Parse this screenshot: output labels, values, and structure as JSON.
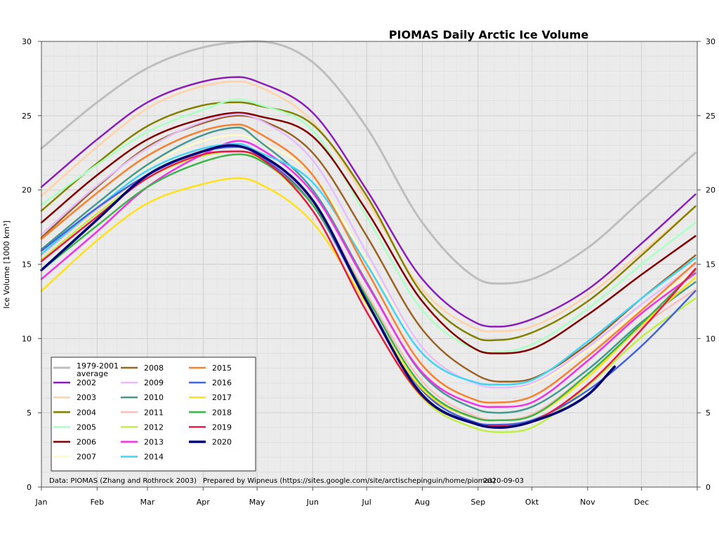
{
  "chart_data": {
    "type": "line",
    "title": "PIOMAS Daily Arctic Ice Volume",
    "ylabel": "Ice Volume [1000 km³]",
    "xlabel": "",
    "ylim": [
      0,
      30
    ],
    "yticks": [
      0,
      5,
      10,
      15,
      20,
      25,
      30
    ],
    "months": [
      "Jan",
      "Feb",
      "Mar",
      "Apr",
      "May",
      "Jun",
      "Jul",
      "Aug",
      "Sep",
      "Okt",
      "Nov",
      "Dec"
    ],
    "grid": true,
    "legend_placement": "bottom-left",
    "background_color": "#ebebeb",
    "note_data": "Data: PIOMAS (Zhang and Rothrock 2003)",
    "note_prepared": "Prepared by Wipneus (https://sites.google.com/site/arctischepinguin/home/piomas)",
    "note_date": "2020-09-03",
    "series": [
      {
        "name": "1979-2001 average",
        "color": "#bebebe",
        "width": 3,
        "x": [
          1,
          32,
          60,
          91,
          121,
          152,
          182,
          213,
          244,
          257,
          274,
          305,
          335,
          365
        ],
        "values": [
          22.8,
          25.9,
          28.2,
          29.6,
          30.0,
          28.6,
          24.2,
          17.8,
          14.0,
          13.7,
          14.0,
          16.1,
          19.3,
          22.5
        ]
      },
      {
        "name": "2002",
        "color": "#8b1eb8",
        "width": 2.5,
        "x": [
          1,
          32,
          60,
          91,
          111,
          121,
          152,
          182,
          213,
          244,
          256,
          274,
          305,
          335,
          365
        ],
        "values": [
          20.2,
          23.4,
          25.9,
          27.3,
          27.6,
          27.3,
          25.2,
          20.0,
          14.0,
          11.0,
          10.8,
          11.3,
          13.3,
          16.4,
          19.7
        ]
      },
      {
        "name": "2003",
        "color": "#ffd3a8",
        "width": 2.5,
        "x": [
          1,
          32,
          60,
          91,
          111,
          121,
          152,
          182,
          213,
          244,
          256,
          274,
          305,
          335,
          365
        ],
        "values": [
          19.6,
          22.9,
          25.5,
          27.0,
          27.3,
          27.0,
          24.6,
          19.3,
          13.3,
          10.6,
          10.5,
          10.8,
          12.9,
          15.8,
          18.9
        ]
      },
      {
        "name": "2004",
        "color": "#838200",
        "width": 2.5,
        "x": [
          1,
          32,
          60,
          91,
          111,
          121,
          152,
          182,
          213,
          244,
          256,
          274,
          305,
          335,
          365
        ],
        "values": [
          18.6,
          21.8,
          24.3,
          25.7,
          25.9,
          25.7,
          24.4,
          19.6,
          13.0,
          10.0,
          9.9,
          10.4,
          12.5,
          15.6,
          18.9
        ]
      },
      {
        "name": "2005",
        "color": "#aaffc3",
        "width": 2.5,
        "x": [
          1,
          32,
          60,
          91,
          111,
          121,
          152,
          182,
          213,
          244,
          256,
          274,
          305,
          335,
          365
        ],
        "values": [
          19.0,
          21.7,
          23.9,
          25.4,
          26.1,
          25.8,
          24.0,
          18.2,
          11.9,
          9.2,
          9.1,
          9.6,
          12.0,
          15.0,
          17.8
        ]
      },
      {
        "name": "2006",
        "color": "#800000",
        "width": 2.5,
        "x": [
          1,
          32,
          60,
          91,
          111,
          121,
          152,
          182,
          213,
          244,
          256,
          274,
          305,
          335,
          365
        ],
        "values": [
          17.8,
          21.0,
          23.4,
          24.8,
          25.2,
          25.0,
          23.6,
          18.6,
          12.5,
          9.2,
          9.0,
          9.3,
          11.6,
          14.3,
          16.9
        ]
      },
      {
        "name": "2007",
        "color": "#fffac8",
        "width": 2.5,
        "x": [
          1,
          32,
          60,
          91,
          111,
          121,
          152,
          182,
          213,
          244,
          256,
          274,
          305,
          335,
          365
        ],
        "values": [
          16.0,
          19.1,
          21.6,
          23.3,
          23.7,
          23.3,
          21.0,
          15.3,
          9.4,
          6.9,
          6.7,
          6.9,
          9.2,
          12.0,
          14.6
        ]
      },
      {
        "name": "2008",
        "color": "#9a6324",
        "width": 2.5,
        "x": [
          1,
          32,
          60,
          91,
          111,
          121,
          152,
          182,
          213,
          244,
          256,
          274,
          305,
          335,
          365
        ],
        "values": [
          16.8,
          20.2,
          22.9,
          24.5,
          25.0,
          24.8,
          22.5,
          16.9,
          10.6,
          7.5,
          7.1,
          7.3,
          9.6,
          12.7,
          15.6
        ]
      },
      {
        "name": "2009",
        "color": "#e6beff",
        "width": 2.5,
        "x": [
          1,
          32,
          60,
          91,
          111,
          121,
          152,
          182,
          213,
          244,
          256,
          274,
          305,
          335,
          365
        ],
        "values": [
          17.0,
          20.3,
          22.8,
          24.6,
          25.1,
          24.8,
          22.0,
          15.8,
          9.4,
          6.9,
          6.7,
          7.0,
          9.4,
          12.3,
          15.0
        ]
      },
      {
        "name": "2010",
        "color": "#469990",
        "width": 2.5,
        "x": [
          1,
          32,
          60,
          91,
          111,
          121,
          152,
          182,
          213,
          244,
          256,
          274,
          305,
          335,
          365
        ],
        "values": [
          16.0,
          19.1,
          21.7,
          23.7,
          24.2,
          23.4,
          20.0,
          13.8,
          7.6,
          5.2,
          5.0,
          5.4,
          7.9,
          11.1,
          13.8
        ]
      },
      {
        "name": "2011",
        "color": "#fabebe",
        "width": 2.5,
        "x": [
          1,
          32,
          60,
          91,
          111,
          121,
          152,
          182,
          213,
          244,
          256,
          274,
          305,
          335,
          365
        ],
        "values": [
          15.6,
          18.7,
          21.0,
          22.7,
          23.0,
          22.5,
          19.2,
          13.0,
          7.1,
          4.7,
          4.5,
          4.9,
          7.6,
          10.8,
          13.3
        ]
      },
      {
        "name": "2012",
        "color": "#bfef45",
        "width": 2.5,
        "x": [
          1,
          32,
          60,
          91,
          111,
          121,
          152,
          182,
          213,
          244,
          256,
          274,
          305,
          335,
          365
        ],
        "values": [
          15.3,
          18.4,
          20.8,
          22.3,
          22.6,
          22.2,
          18.6,
          11.8,
          6.0,
          3.9,
          3.7,
          4.0,
          6.8,
          10.1,
          12.7
        ]
      },
      {
        "name": "2013",
        "color": "#f032e6",
        "width": 2.5,
        "x": [
          1,
          32,
          60,
          91,
          111,
          121,
          152,
          182,
          213,
          244,
          256,
          274,
          305,
          335,
          365
        ],
        "values": [
          14.0,
          17.2,
          20.2,
          22.4,
          23.3,
          22.9,
          19.8,
          13.7,
          7.7,
          5.5,
          5.4,
          5.7,
          8.5,
          11.7,
          14.4
        ]
      },
      {
        "name": "2014",
        "color": "#42d4f4",
        "width": 2.5,
        "x": [
          1,
          32,
          60,
          91,
          111,
          121,
          152,
          182,
          213,
          244,
          256,
          274,
          305,
          335,
          365
        ],
        "values": [
          15.7,
          18.8,
          21.3,
          22.8,
          23.1,
          22.6,
          20.5,
          15.0,
          9.0,
          7.0,
          6.9,
          7.2,
          9.8,
          12.7,
          15.4
        ]
      },
      {
        "name": "2015",
        "color": "#f58231",
        "width": 2.5,
        "x": [
          1,
          32,
          60,
          91,
          111,
          121,
          152,
          182,
          213,
          244,
          256,
          274,
          305,
          335,
          365
        ],
        "values": [
          16.7,
          19.8,
          22.3,
          24.0,
          24.4,
          23.9,
          21.0,
          14.6,
          8.2,
          5.8,
          5.7,
          6.1,
          8.8,
          11.9,
          15.1
        ]
      },
      {
        "name": "2016",
        "color": "#4363d8",
        "width": 2.5,
        "x": [
          1,
          32,
          60,
          91,
          111,
          121,
          152,
          182,
          213,
          244,
          256,
          274,
          305,
          335,
          365
        ],
        "values": [
          15.9,
          18.8,
          21.0,
          22.6,
          22.9,
          22.4,
          19.0,
          12.5,
          6.5,
          4.3,
          4.2,
          4.5,
          6.5,
          9.5,
          13.2
        ]
      },
      {
        "name": "2017",
        "color": "#ffe119",
        "width": 2.5,
        "x": [
          1,
          32,
          60,
          91,
          111,
          121,
          152,
          182,
          213,
          244,
          256,
          274,
          305,
          335,
          365
        ],
        "values": [
          13.2,
          16.6,
          19.1,
          20.4,
          20.8,
          20.5,
          17.8,
          12.3,
          6.6,
          4.6,
          4.5,
          4.8,
          7.4,
          10.9,
          14.1
        ]
      },
      {
        "name": "2018",
        "color": "#3cb44b",
        "width": 2.5,
        "x": [
          1,
          32,
          60,
          91,
          111,
          121,
          152,
          182,
          213,
          244,
          256,
          274,
          305,
          335,
          365
        ],
        "values": [
          14.6,
          17.6,
          20.2,
          21.9,
          22.4,
          22.1,
          19.0,
          12.8,
          6.8,
          4.6,
          4.5,
          4.8,
          7.6,
          11.0,
          14.6
        ]
      },
      {
        "name": "2019",
        "color": "#e6194b",
        "width": 2.5,
        "x": [
          1,
          32,
          60,
          91,
          111,
          121,
          152,
          182,
          213,
          244,
          256,
          274,
          305,
          335,
          365
        ],
        "values": [
          15.2,
          18.2,
          20.8,
          22.4,
          22.6,
          22.3,
          18.6,
          11.8,
          6.1,
          4.2,
          4.1,
          4.4,
          6.9,
          10.6,
          14.7
        ]
      },
      {
        "name": "2020",
        "color": "#000075",
        "width": 3.5,
        "x": [
          1,
          32,
          60,
          91,
          106,
          121,
          152,
          182,
          213,
          244,
          256,
          274,
          305,
          320
        ],
        "values": [
          14.6,
          18.0,
          21.0,
          22.6,
          23.0,
          22.5,
          19.3,
          12.5,
          6.2,
          4.2,
          4.0,
          4.4,
          6.2,
          8.1
        ]
      }
    ]
  }
}
